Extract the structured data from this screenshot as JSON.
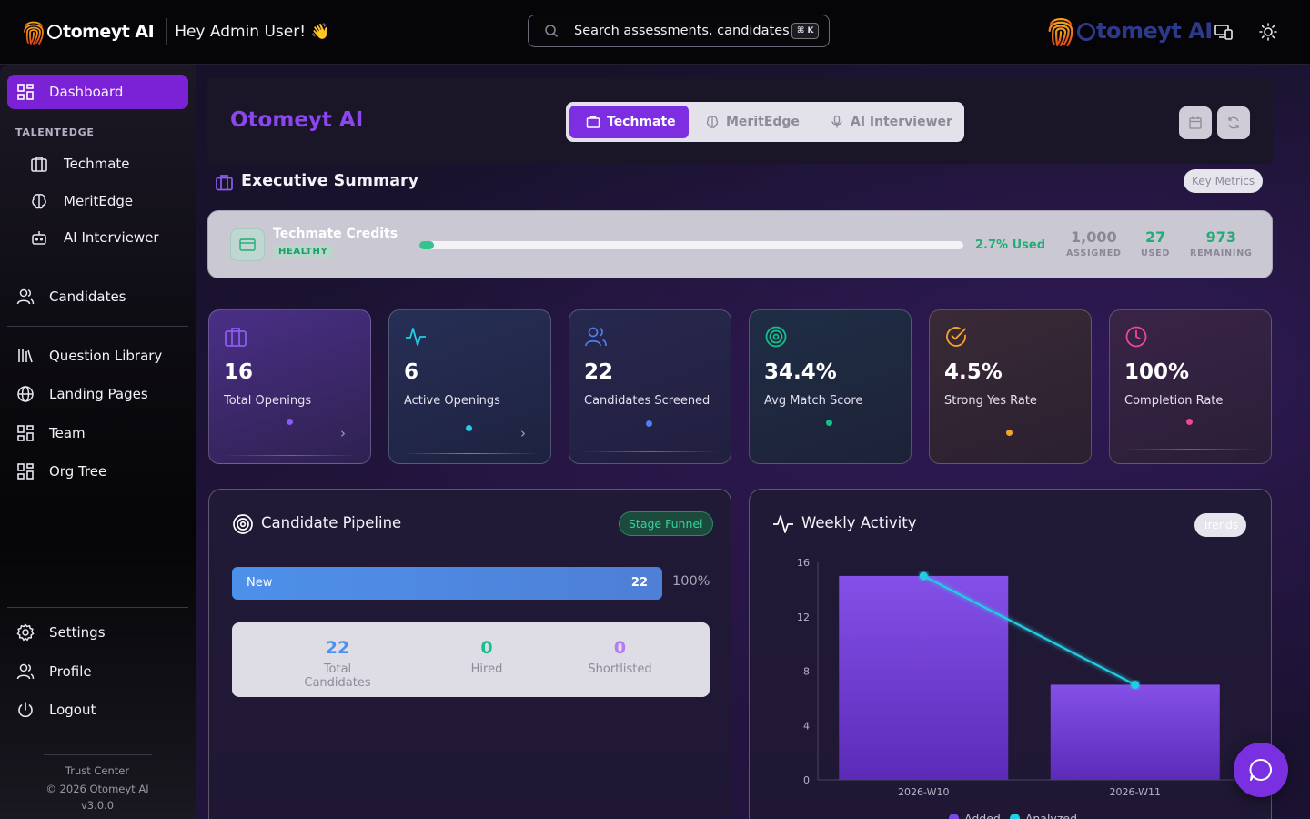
{
  "topbar": {
    "brand": "tomeyt AI",
    "greeting": "Hey Admin User! 👋",
    "search_placeholder": "Search assessments, candidates",
    "search_shortcut": "⌘ K",
    "brand_right": "tomeyt AI"
  },
  "sidebar": {
    "dashboard": "Dashboard",
    "section_label": "TALENTEDGE",
    "techmate": "Techmate",
    "meritedge": "MeritEdge",
    "ai_interviewer": "AI Interviewer",
    "candidates": "Candidates",
    "question_library": "Question Library",
    "landing_pages": "Landing Pages",
    "team": "Team",
    "org_tree": "Org Tree",
    "settings": "Settings",
    "profile": "Profile",
    "logout": "Logout",
    "trust_center": "Trust Center",
    "copyright": "© 2026 Otomeyt AI",
    "version": "v3.0.0"
  },
  "header": {
    "title": "Otomeyt AI",
    "tabs": [
      "Techmate",
      "MeritEdge",
      "AI Interviewer"
    ]
  },
  "summary": {
    "title": "Executive Summary",
    "badge": "Key Metrics"
  },
  "credits": {
    "title": "Techmate Credits",
    "status": "HEALTHY",
    "used_fraction": 0.027,
    "used_label": "2.7% Used",
    "assigned_value": "1,000",
    "assigned_label": "ASSIGNED",
    "used_value": "27",
    "used_stat_label": "USED",
    "remaining_value": "973",
    "remaining_label": "REMAINING"
  },
  "kpis": [
    {
      "value": "16",
      "label": "Total Openings",
      "icon": "briefcase-icon"
    },
    {
      "value": "6",
      "label": "Active Openings",
      "icon": "activity-icon"
    },
    {
      "value": "22",
      "label": "Candidates Screened",
      "icon": "users-icon"
    },
    {
      "value": "34.4%",
      "label": "Avg Match Score",
      "icon": "target-icon"
    },
    {
      "value": "4.5%",
      "label": "Strong Yes Rate",
      "icon": "check-circle-icon"
    },
    {
      "value": "100%",
      "label": "Completion Rate",
      "icon": "clock-icon"
    }
  ],
  "pipeline": {
    "title": "Candidate Pipeline",
    "badge": "Stage Funnel",
    "stage_name": "New",
    "stage_value": "22",
    "stage_pct": "100%",
    "total_value": "22",
    "total_label": "Total Candidates",
    "hired_value": "0",
    "hired_label": "Hired",
    "short_value": "0",
    "short_label": "Shortlisted"
  },
  "weekly": {
    "title": "Weekly Activity",
    "badge": "Trends"
  },
  "chart_data": {
    "type": "bar",
    "categories": [
      "2026-W10",
      "2026-W11"
    ],
    "series": [
      {
        "name": "Added",
        "type": "bar",
        "values": [
          15,
          7
        ],
        "color": "#7c45e8"
      },
      {
        "name": "Analyzed",
        "type": "line",
        "values": [
          15,
          7
        ],
        "color": "#23cde3"
      }
    ],
    "ylim": [
      0,
      16
    ],
    "yticks": [
      0,
      4,
      8,
      12,
      16
    ],
    "grid": false,
    "legend": "bottom"
  },
  "colors": {
    "accent": "#7c22d6",
    "success": "#1fae74"
  }
}
